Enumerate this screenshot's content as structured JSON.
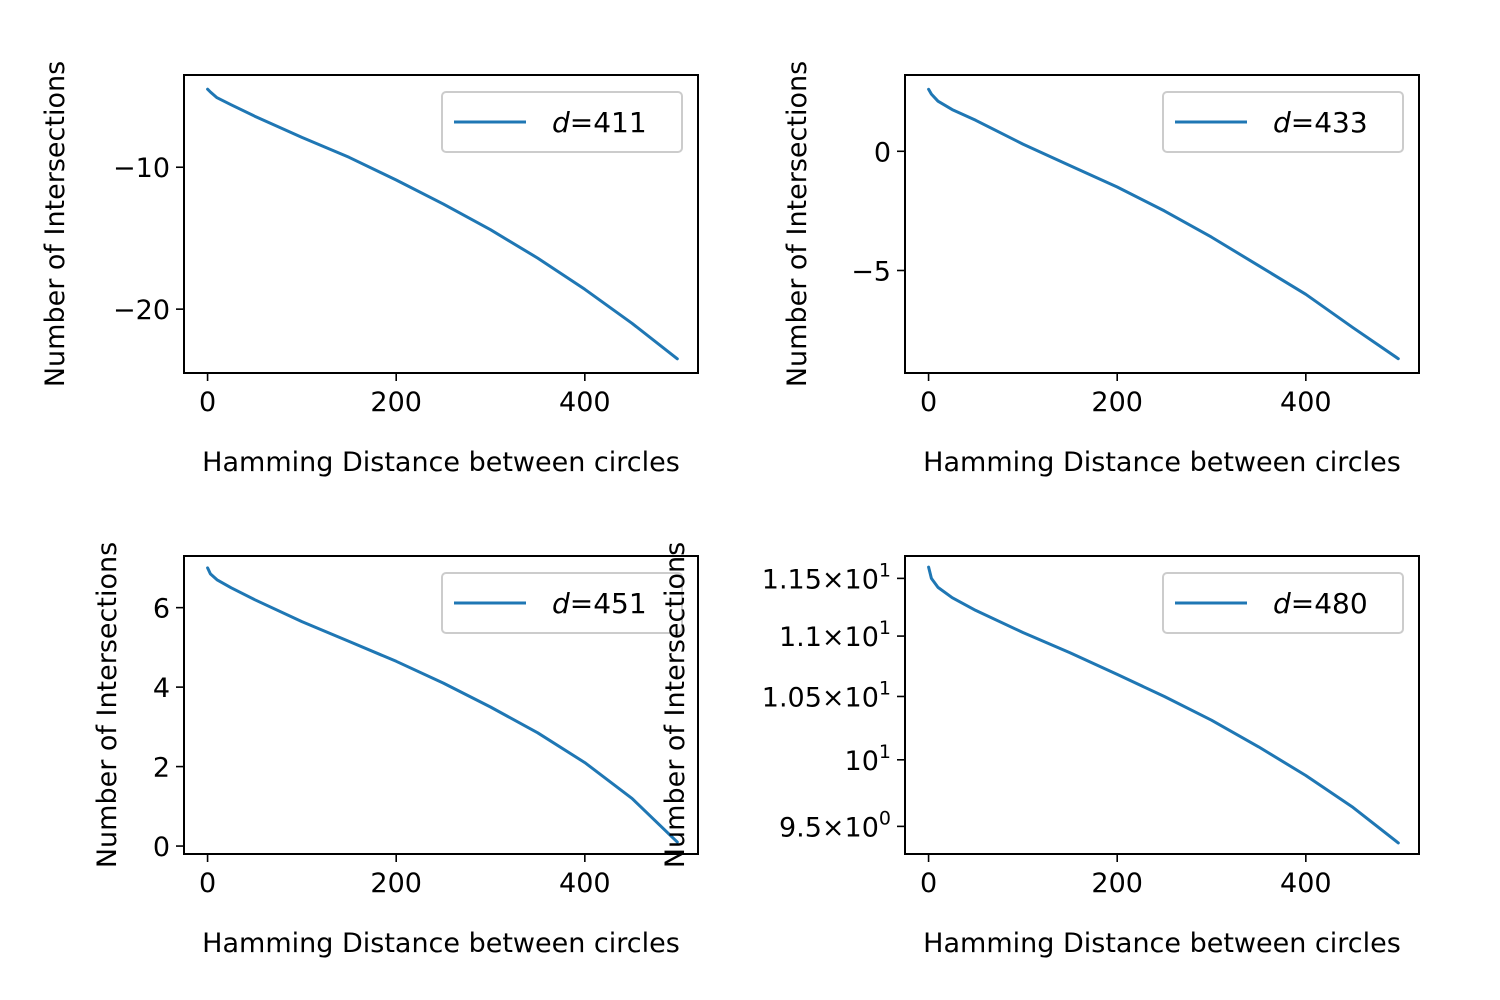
{
  "chart_data": [
    {
      "type": "line",
      "xlabel": "Hamming Distance between circles",
      "ylabel": "Number of Intersections",
      "xlim": [
        -25,
        520
      ],
      "ylim": [
        -24.5,
        -3.5
      ],
      "yscale": "linear",
      "xticks": [
        0,
        200,
        400
      ],
      "xtick_labels": [
        "0",
        "200",
        "400"
      ],
      "yticks": [
        -10,
        -20
      ],
      "ytick_labels": [
        "−10",
        "−20"
      ],
      "legend_placement": "upper right",
      "series": [
        {
          "name_prefix": "d",
          "name_suffix": "=411",
          "color": "#1f77b4",
          "x": [
            0,
            3,
            10,
            25,
            50,
            100,
            150,
            200,
            250,
            300,
            350,
            400,
            450,
            498
          ],
          "y": [
            -4.5,
            -4.7,
            -5.1,
            -5.6,
            -6.4,
            -7.9,
            -9.3,
            -10.9,
            -12.6,
            -14.4,
            -16.4,
            -18.6,
            -21.0,
            -23.5
          ]
        }
      ]
    },
    {
      "type": "line",
      "xlabel": "Hamming Distance between circles",
      "ylabel": "Number of Intersections",
      "xlim": [
        -25,
        520
      ],
      "ylim": [
        -9.3,
        3.2
      ],
      "yscale": "linear",
      "xticks": [
        0,
        200,
        400
      ],
      "xtick_labels": [
        "0",
        "200",
        "400"
      ],
      "yticks": [
        0,
        -5
      ],
      "ytick_labels": [
        "0",
        "−5"
      ],
      "legend_placement": "upper right",
      "series": [
        {
          "name_prefix": "d",
          "name_suffix": "=433",
          "color": "#1f77b4",
          "x": [
            0,
            3,
            10,
            25,
            50,
            100,
            150,
            200,
            250,
            300,
            350,
            400,
            450,
            498
          ],
          "y": [
            2.6,
            2.4,
            2.1,
            1.75,
            1.3,
            0.3,
            -0.6,
            -1.5,
            -2.5,
            -3.6,
            -4.8,
            -6.0,
            -7.4,
            -8.7
          ]
        }
      ]
    },
    {
      "type": "line",
      "xlabel": "Hamming Distance between circles",
      "ylabel": "Number of Intersections",
      "xlim": [
        -25,
        520
      ],
      "ylim": [
        -0.2,
        7.3
      ],
      "yscale": "linear",
      "xticks": [
        0,
        200,
        400
      ],
      "xtick_labels": [
        "0",
        "200",
        "400"
      ],
      "yticks": [
        6,
        4,
        2,
        0
      ],
      "ytick_labels": [
        "6",
        "4",
        "2",
        "0"
      ],
      "legend_placement": "upper right",
      "series": [
        {
          "name_prefix": "d",
          "name_suffix": "=451",
          "color": "#1f77b4",
          "x": [
            0,
            3,
            10,
            25,
            50,
            100,
            150,
            200,
            250,
            300,
            350,
            400,
            450,
            498
          ],
          "y": [
            7.0,
            6.85,
            6.7,
            6.5,
            6.2,
            5.65,
            5.15,
            4.65,
            4.1,
            3.5,
            2.85,
            2.1,
            1.2,
            0.1
          ]
        }
      ]
    },
    {
      "type": "line",
      "xlabel": "Hamming Distance between circles",
      "ylabel": "Number of Intersections",
      "xlim": [
        -25,
        520
      ],
      "ylim": [
        9.3,
        11.7
      ],
      "yscale": "log",
      "xticks": [
        0,
        200,
        400
      ],
      "xtick_labels": [
        "0",
        "200",
        "400"
      ],
      "yticks": [
        11.5,
        11.0,
        10.5,
        10.0,
        9.5
      ],
      "ytick_labels": [
        {
          "mantissa": "1.15",
          "times": "×",
          "base": "10",
          "exp": "1"
        },
        {
          "mantissa": "1.1",
          "times": "×",
          "base": "10",
          "exp": "1"
        },
        {
          "mantissa": "1.05",
          "times": "×",
          "base": "10",
          "exp": "1"
        },
        {
          "mantissa": "",
          "times": "",
          "base": "10",
          "exp": "1"
        },
        {
          "mantissa": "9.5",
          "times": "×",
          "base": "10",
          "exp": "0"
        }
      ],
      "legend_placement": "upper right",
      "series": [
        {
          "name_prefix": "d",
          "name_suffix": "=480",
          "color": "#1f77b4",
          "x": [
            0,
            3,
            10,
            25,
            50,
            100,
            150,
            200,
            250,
            300,
            350,
            400,
            450,
            498
          ],
          "y": [
            11.6,
            11.5,
            11.42,
            11.33,
            11.22,
            11.03,
            10.86,
            10.68,
            10.5,
            10.31,
            10.1,
            9.88,
            9.64,
            9.38
          ]
        }
      ]
    }
  ]
}
